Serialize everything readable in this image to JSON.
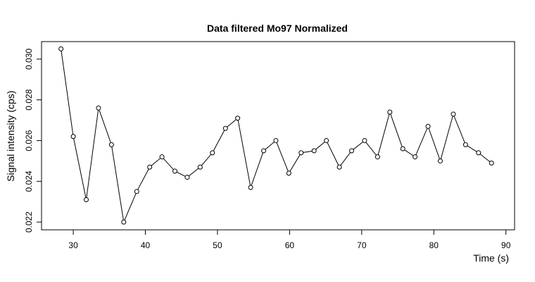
{
  "chart_data": {
    "type": "line",
    "title": "Data filtered Mo97 Normalized",
    "xlabel": "Time (s)",
    "ylabel": "Signal intensity (cps)",
    "xlim": [
      25.6,
      91.2
    ],
    "ylim": [
      0.02162,
      0.03086
    ],
    "xticks": [
      30,
      40,
      50,
      60,
      70,
      80,
      90
    ],
    "yticks": [
      0.022,
      0.024,
      0.026,
      0.028,
      0.03
    ],
    "xtick_labels": [
      "30",
      "40",
      "50",
      "60",
      "70",
      "80",
      "90"
    ],
    "ytick_labels": [
      "0.022",
      "0.024",
      "0.026",
      "0.028",
      "0.030"
    ],
    "grid": false,
    "legend": "none",
    "series": [
      {
        "marker": "open-circle",
        "color": "#000000",
        "x": [
          28.3,
          30.0,
          31.8,
          33.5,
          35.3,
          37.0,
          38.8,
          40.6,
          42.3,
          44.1,
          45.8,
          47.6,
          49.3,
          51.1,
          52.8,
          54.6,
          56.4,
          58.1,
          59.9,
          61.6,
          63.4,
          65.1,
          66.9,
          68.6,
          70.4,
          72.2,
          73.9,
          75.7,
          77.4,
          79.2,
          80.9,
          82.7,
          84.4,
          86.2,
          88.0
        ],
        "y": [
          0.0305,
          0.0262,
          0.0231,
          0.0276,
          0.0258,
          0.022,
          0.0235,
          0.0247,
          0.0252,
          0.0245,
          0.0242,
          0.0247,
          0.0254,
          0.0266,
          0.0271,
          0.0237,
          0.0255,
          0.026,
          0.0244,
          0.0254,
          0.0255,
          0.026,
          0.0247,
          0.0255,
          0.026,
          0.0252,
          0.0274,
          0.0256,
          0.0252,
          0.0267,
          0.025,
          0.0273,
          0.0258,
          0.0254,
          0.0249
        ]
      }
    ]
  }
}
